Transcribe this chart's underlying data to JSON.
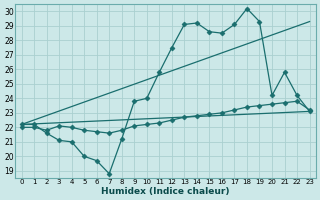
{
  "xlabel": "Humidex (Indice chaleur)",
  "bg_color": "#cce8e8",
  "line_color": "#1a6e6e",
  "grid_color": "#aad0d0",
  "xlim": [
    -0.5,
    23.5
  ],
  "ylim": [
    18.5,
    30.5
  ],
  "xticks": [
    0,
    1,
    2,
    3,
    4,
    5,
    6,
    7,
    8,
    9,
    10,
    11,
    12,
    13,
    14,
    15,
    16,
    17,
    18,
    19,
    20,
    21,
    22,
    23
  ],
  "yticks": [
    19,
    20,
    21,
    22,
    23,
    24,
    25,
    26,
    27,
    28,
    29,
    30
  ],
  "line1_x": [
    0,
    1,
    2,
    3,
    4,
    5,
    6,
    7,
    8,
    9,
    10,
    11,
    12,
    13,
    14,
    15,
    16,
    17,
    18,
    19,
    20,
    21,
    22,
    23
  ],
  "line1_y": [
    22.2,
    22.2,
    21.6,
    21.1,
    21.0,
    20.0,
    19.7,
    18.8,
    21.2,
    23.8,
    24.0,
    25.8,
    27.5,
    29.1,
    29.2,
    28.6,
    28.5,
    29.1,
    30.2,
    29.3,
    24.2,
    25.8,
    24.2,
    23.1
  ],
  "line2_x": [
    0,
    1,
    2,
    3,
    4,
    5,
    6,
    7,
    8,
    9,
    10,
    11,
    12,
    13,
    14,
    15,
    16,
    17,
    18,
    19,
    20,
    21,
    22,
    23
  ],
  "line2_y": [
    22.0,
    22.0,
    21.8,
    22.1,
    22.0,
    21.8,
    21.7,
    21.6,
    21.8,
    22.1,
    22.2,
    22.3,
    22.5,
    22.7,
    22.8,
    22.9,
    23.0,
    23.2,
    23.4,
    23.5,
    23.6,
    23.7,
    23.8,
    23.2
  ],
  "line3_x": [
    0,
    23
  ],
  "line3_y": [
    22.2,
    29.3
  ],
  "line4_x": [
    0,
    23
  ],
  "line4_y": [
    22.2,
    23.1
  ],
  "marker": "D",
  "marker_size": 2.5,
  "lw": 0.9
}
